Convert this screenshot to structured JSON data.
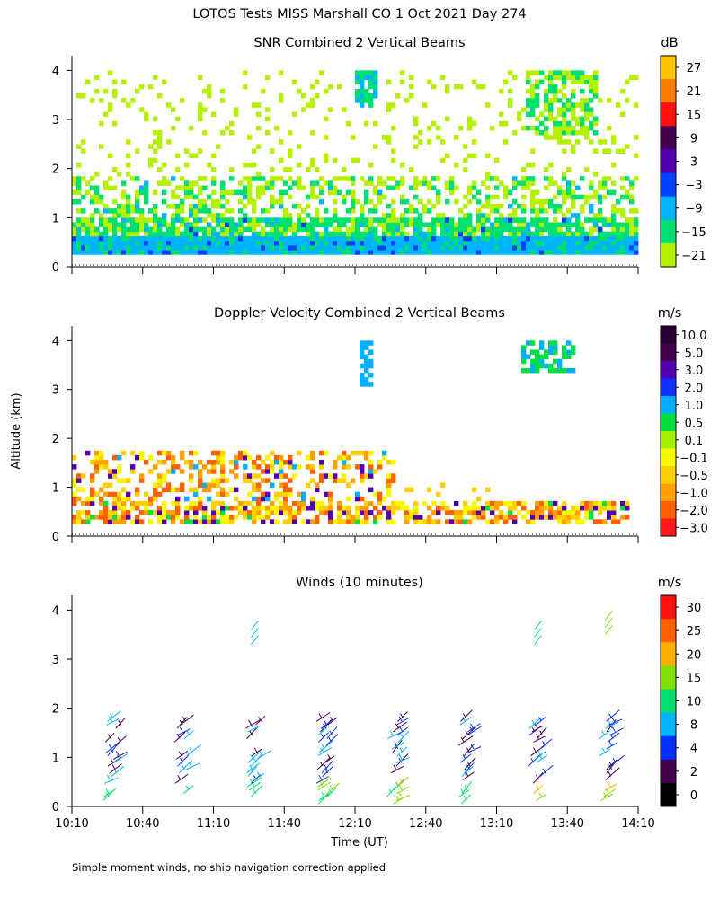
{
  "figure": {
    "title": "LOTOS Tests MISS Marshall CO   1 Oct 2021 Day 274",
    "ylabel": "Altitude (km)",
    "xlabel": "Time (UT)",
    "footnote": "Simple moment winds, no ship navigation correction applied"
  },
  "chart_data": [
    {
      "type": "heatmap",
      "title": "SNR Combined 2 Vertical Beams",
      "colorbar_unit": "dB",
      "colorbar_ticks": [
        "27",
        "21",
        "15",
        "9",
        "3",
        "−3",
        "−9",
        "−15",
        "−21"
      ],
      "colorbar_colors": [
        "#fcc400",
        "#fc7e00",
        "#ff1010",
        "#440050",
        "#5000b0",
        "#0040ff",
        "#00b4ff",
        "#00e070",
        "#b4f000"
      ],
      "ylim": [
        0,
        4
      ],
      "yticks": [
        "0",
        "1",
        "2",
        "3",
        "4"
      ],
      "xlim": [
        "10:10",
        "14:10"
      ],
      "description_layers": [
        {
          "alt_km": [
            0.25,
            0.6
          ],
          "level": "-9 dB",
          "coverage": "continuous"
        },
        {
          "alt_km": [
            0.6,
            1.8
          ],
          "level": "-15 to -21 dB",
          "coverage": "patchy"
        },
        {
          "alt_km": [
            1.8,
            4.0
          ],
          "level": "-21 dB",
          "coverage": "sparse"
        }
      ]
    },
    {
      "type": "heatmap",
      "title": "Doppler Velocity Combined 2 Vertical Beams",
      "colorbar_unit": "m/s",
      "colorbar_ticks": [
        "10.0",
        "5.0",
        "3.0",
        "2.0",
        "1.0",
        "0.5",
        "0.1",
        "−0.1",
        "−0.5",
        "−1.0",
        "−2.0",
        "−3.0"
      ],
      "colorbar_colors": [
        "#2a0030",
        "#440050",
        "#5000b0",
        "#1030ff",
        "#00b0ff",
        "#00e040",
        "#a0f000",
        "#f8f800",
        "#ffd000",
        "#ffa000",
        "#ff6000",
        "#ff1818"
      ],
      "ylim": [
        0,
        4
      ],
      "yticks": [
        "0",
        "1",
        "2",
        "3",
        "4"
      ],
      "xlim": [
        "10:10",
        "14:10"
      ]
    },
    {
      "type": "scatter",
      "title": "Winds (10 minutes)",
      "colorbar_unit": "m/s",
      "colorbar_ticks": [
        "30",
        "25",
        "20",
        "15",
        "10",
        "8",
        "4",
        "2",
        "0"
      ],
      "colorbar_colors": [
        "#ff1010",
        "#fc6000",
        "#fcb000",
        "#80e000",
        "#00e070",
        "#00b4ff",
        "#0030ff",
        "#440050",
        "#000000"
      ],
      "ylim": [
        0,
        4
      ],
      "yticks": [
        "0",
        "1",
        "2",
        "3",
        "4"
      ],
      "xticks": [
        "10:10",
        "10:40",
        "11:10",
        "11:40",
        "12:10",
        "12:40",
        "13:10",
        "13:40",
        "14:10"
      ],
      "profile_times": [
        "10:26",
        "10:56",
        "11:26",
        "11:56",
        "12:26",
        "12:56",
        "13:26",
        "13:56"
      ]
    }
  ]
}
